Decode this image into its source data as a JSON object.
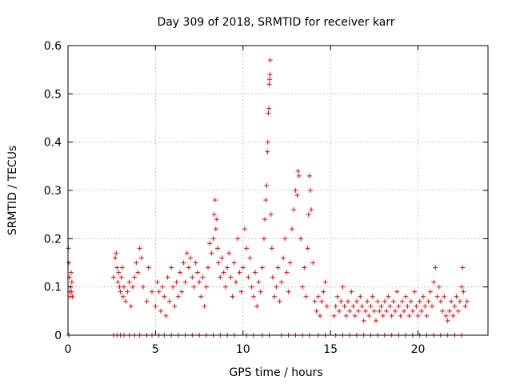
{
  "chart_data": {
    "type": "scatter",
    "title": "Day 309 of 2018, SRMTID for receiver karr",
    "xlabel": "GPS time / hours",
    "ylabel": "SRMTID / TECUs",
    "xlim": [
      0,
      24
    ],
    "ylim": [
      0,
      0.6
    ],
    "x_ticks": [
      0,
      5,
      10,
      15,
      20
    ],
    "y_ticks": [
      0,
      0.1,
      0.2,
      0.3,
      0.4,
      0.5,
      0.6
    ],
    "x_tick_labels": [
      "0",
      "5",
      "10",
      "15",
      "20"
    ],
    "y_tick_labels": [
      "0",
      "0.1",
      "0.2",
      "0.3",
      "0.4",
      "0.5",
      "0.6"
    ],
    "grid": true,
    "marker": "+",
    "color": "#ff0000",
    "series": [
      {
        "name": "SRMTID",
        "points": [
          [
            0.02,
            0.18
          ],
          [
            0.05,
            0.15
          ],
          [
            0.08,
            0.12
          ],
          [
            0.1,
            0.09
          ],
          [
            0.12,
            0.08
          ],
          [
            0.15,
            0.1
          ],
          [
            0.18,
            0.13
          ],
          [
            0.2,
            0.09
          ],
          [
            0.22,
            0.11
          ],
          [
            0.25,
            0.08
          ],
          [
            2.6,
            0.12
          ],
          [
            2.7,
            0.16
          ],
          [
            2.75,
            0.17
          ],
          [
            2.8,
            0.14
          ],
          [
            2.85,
            0.11
          ],
          [
            2.9,
            0.13
          ],
          [
            2.95,
            0.1
          ],
          [
            3.0,
            0.09
          ],
          [
            3.05,
            0.12
          ],
          [
            3.1,
            0.14
          ],
          [
            3.15,
            0.08
          ],
          [
            3.2,
            0.1
          ],
          [
            3.3,
            0.07
          ],
          [
            3.4,
            0.09
          ],
          [
            3.5,
            0.11
          ],
          [
            3.6,
            0.06
          ],
          [
            3.7,
            0.1
          ],
          [
            3.8,
            0.12
          ],
          [
            3.9,
            0.15
          ],
          [
            4.0,
            0.13
          ],
          [
            4.1,
            0.18
          ],
          [
            4.2,
            0.16
          ],
          [
            4.3,
            0.1
          ],
          [
            4.5,
            0.07
          ],
          [
            4.6,
            0.14
          ],
          [
            4.8,
            0.09
          ],
          [
            5.0,
            0.06
          ],
          [
            5.1,
            0.11
          ],
          [
            5.2,
            0.09
          ],
          [
            5.3,
            0.05
          ],
          [
            5.4,
            0.1
          ],
          [
            5.5,
            0.08
          ],
          [
            5.6,
            0.04
          ],
          [
            5.7,
            0.12
          ],
          [
            5.8,
            0.07
          ],
          [
            5.9,
            0.14
          ],
          [
            6.0,
            0.1
          ],
          [
            6.1,
            0.06
          ],
          [
            6.2,
            0.11
          ],
          [
            6.3,
            0.08
          ],
          [
            6.4,
            0.13
          ],
          [
            6.5,
            0.09
          ],
          [
            6.6,
            0.15
          ],
          [
            6.7,
            0.11
          ],
          [
            6.8,
            0.17
          ],
          [
            6.9,
            0.14
          ],
          [
            7.0,
            0.16
          ],
          [
            7.1,
            0.12
          ],
          [
            7.2,
            0.1
          ],
          [
            7.3,
            0.15
          ],
          [
            7.4,
            0.13
          ],
          [
            7.5,
            0.11
          ],
          [
            7.6,
            0.08
          ],
          [
            7.7,
            0.12
          ],
          [
            7.8,
            0.06
          ],
          [
            7.9,
            0.1
          ],
          [
            8.0,
            0.14
          ],
          [
            8.1,
            0.19
          ],
          [
            8.2,
            0.17
          ],
          [
            8.3,
            0.2
          ],
          [
            8.35,
            0.25
          ],
          [
            8.4,
            0.28
          ],
          [
            8.45,
            0.22
          ],
          [
            8.5,
            0.24
          ],
          [
            8.55,
            0.18
          ],
          [
            8.6,
            0.15
          ],
          [
            8.7,
            0.12
          ],
          [
            8.8,
            0.16
          ],
          [
            8.9,
            0.13
          ],
          [
            9.0,
            0.1
          ],
          [
            9.1,
            0.14
          ],
          [
            9.2,
            0.17
          ],
          [
            9.3,
            0.12
          ],
          [
            9.4,
            0.08
          ],
          [
            9.5,
            0.15
          ],
          [
            9.6,
            0.11
          ],
          [
            9.7,
            0.2
          ],
          [
            9.8,
            0.13
          ],
          [
            9.9,
            0.09
          ],
          [
            10.0,
            0.14
          ],
          [
            10.1,
            0.22
          ],
          [
            10.2,
            0.18
          ],
          [
            10.3,
            0.12
          ],
          [
            10.4,
            0.16
          ],
          [
            10.5,
            0.1
          ],
          [
            10.6,
            0.08
          ],
          [
            10.7,
            0.13
          ],
          [
            10.8,
            0.06
          ],
          [
            10.9,
            0.11
          ],
          [
            11.0,
            0.09
          ],
          [
            11.1,
            0.14
          ],
          [
            11.2,
            0.2
          ],
          [
            11.25,
            0.24
          ],
          [
            11.3,
            0.28
          ],
          [
            11.35,
            0.31
          ],
          [
            11.4,
            0.38
          ],
          [
            11.42,
            0.4
          ],
          [
            11.45,
            0.46
          ],
          [
            11.48,
            0.47
          ],
          [
            11.5,
            0.52
          ],
          [
            11.52,
            0.53
          ],
          [
            11.54,
            0.54
          ],
          [
            11.55,
            0.57
          ],
          [
            11.6,
            0.25
          ],
          [
            11.65,
            0.18
          ],
          [
            11.7,
            0.12
          ],
          [
            11.8,
            0.08
          ],
          [
            11.9,
            0.1
          ],
          [
            12.0,
            0.14
          ],
          [
            12.1,
            0.07
          ],
          [
            12.2,
            0.11
          ],
          [
            12.3,
            0.16
          ],
          [
            12.4,
            0.2
          ],
          [
            12.5,
            0.13
          ],
          [
            12.6,
            0.09
          ],
          [
            12.7,
            0.15
          ],
          [
            12.8,
            0.22
          ],
          [
            12.9,
            0.26
          ],
          [
            13.0,
            0.3
          ],
          [
            13.1,
            0.29
          ],
          [
            13.15,
            0.34
          ],
          [
            13.2,
            0.33
          ],
          [
            13.3,
            0.2
          ],
          [
            13.4,
            0.1
          ],
          [
            13.5,
            0.14
          ],
          [
            13.6,
            0.08
          ],
          [
            13.7,
            0.18
          ],
          [
            13.75,
            0.25
          ],
          [
            13.8,
            0.33
          ],
          [
            13.85,
            0.3
          ],
          [
            13.9,
            0.26
          ],
          [
            14.0,
            0.15
          ],
          [
            14.1,
            0.07
          ],
          [
            14.2,
            0.05
          ],
          [
            14.3,
            0.08
          ],
          [
            14.4,
            0.04
          ],
          [
            14.5,
            0.07
          ],
          [
            14.6,
            0.09
          ],
          [
            14.7,
            0.11
          ],
          [
            14.8,
            0.06
          ],
          [
            15.2,
            0.04
          ],
          [
            15.3,
            0.06
          ],
          [
            15.4,
            0.08
          ],
          [
            15.5,
            0.05
          ],
          [
            15.6,
            0.07
          ],
          [
            15.7,
            0.1
          ],
          [
            15.8,
            0.06
          ],
          [
            15.9,
            0.04
          ],
          [
            16.0,
            0.07
          ],
          [
            16.1,
            0.05
          ],
          [
            16.2,
            0.09
          ],
          [
            16.3,
            0.06
          ],
          [
            16.4,
            0.04
          ],
          [
            16.5,
            0.07
          ],
          [
            16.6,
            0.05
          ],
          [
            16.7,
            0.08
          ],
          [
            16.8,
            0.06
          ],
          [
            16.9,
            0.03
          ],
          [
            17.0,
            0.05
          ],
          [
            17.1,
            0.07
          ],
          [
            17.2,
            0.04
          ],
          [
            17.3,
            0.06
          ],
          [
            17.4,
            0.08
          ],
          [
            17.5,
            0.05
          ],
          [
            17.6,
            0.03
          ],
          [
            17.7,
            0.07
          ],
          [
            17.8,
            0.05
          ],
          [
            17.9,
            0.06
          ],
          [
            18.0,
            0.04
          ],
          [
            18.1,
            0.07
          ],
          [
            18.2,
            0.05
          ],
          [
            18.3,
            0.08
          ],
          [
            18.4,
            0.06
          ],
          [
            18.5,
            0.04
          ],
          [
            18.6,
            0.07
          ],
          [
            18.7,
            0.05
          ],
          [
            18.8,
            0.09
          ],
          [
            18.9,
            0.06
          ],
          [
            19.0,
            0.04
          ],
          [
            19.1,
            0.07
          ],
          [
            19.2,
            0.05
          ],
          [
            19.3,
            0.08
          ],
          [
            19.4,
            0.06
          ],
          [
            19.5,
            0.04
          ],
          [
            19.6,
            0.07
          ],
          [
            19.7,
            0.05
          ],
          [
            19.8,
            0.09
          ],
          [
            19.9,
            0.06
          ],
          [
            20.0,
            0.04
          ],
          [
            20.1,
            0.07
          ],
          [
            20.2,
            0.05
          ],
          [
            20.3,
            0.08
          ],
          [
            20.4,
            0.06
          ],
          [
            20.5,
            0.04
          ],
          [
            20.6,
            0.07
          ],
          [
            20.7,
            0.09
          ],
          [
            20.8,
            0.06
          ],
          [
            20.9,
            0.11
          ],
          [
            21.0,
            0.14
          ],
          [
            21.1,
            0.08
          ],
          [
            21.2,
            0.1
          ],
          [
            21.3,
            0.07
          ],
          [
            21.4,
            0.05
          ],
          [
            21.5,
            0.08
          ],
          [
            21.6,
            0.04
          ],
          [
            21.7,
            0.03
          ],
          [
            21.8,
            0.05
          ],
          [
            21.9,
            0.07
          ],
          [
            22.0,
            0.04
          ],
          [
            22.1,
            0.06
          ],
          [
            22.2,
            0.08
          ],
          [
            22.3,
            0.05
          ],
          [
            22.4,
            0.07
          ],
          [
            22.5,
            0.1
          ],
          [
            22.55,
            0.14
          ],
          [
            22.6,
            0.09
          ],
          [
            22.7,
            0.06
          ],
          [
            22.8,
            0.07
          ],
          [
            0.05,
            0.0
          ],
          [
            2.6,
            0.0
          ],
          [
            2.8,
            0.0
          ],
          [
            3.0,
            0.0
          ],
          [
            3.2,
            0.0
          ],
          [
            3.5,
            0.0
          ],
          [
            3.8,
            0.0
          ],
          [
            4.1,
            0.0
          ],
          [
            4.5,
            0.0
          ],
          [
            4.8,
            0.0
          ],
          [
            5.2,
            0.0
          ],
          [
            5.5,
            0.0
          ],
          [
            5.9,
            0.0
          ],
          [
            6.3,
            0.0
          ],
          [
            6.7,
            0.0
          ],
          [
            7.1,
            0.0
          ],
          [
            7.5,
            0.0
          ],
          [
            7.9,
            0.0
          ],
          [
            8.3,
            0.0
          ],
          [
            8.7,
            0.0
          ],
          [
            9.1,
            0.0
          ],
          [
            9.5,
            0.0
          ],
          [
            10.2,
            0.0
          ],
          [
            10.6,
            0.0
          ],
          [
            11.1,
            0.0
          ],
          [
            11.5,
            0.0
          ],
          [
            12.2,
            0.0
          ],
          [
            12.6,
            0.0
          ],
          [
            13.0,
            0.0
          ],
          [
            13.4,
            0.0
          ],
          [
            13.8,
            0.0
          ],
          [
            14.3,
            0.0
          ],
          [
            14.7,
            0.0
          ],
          [
            15.3,
            0.0
          ],
          [
            15.7,
            0.0
          ],
          [
            16.1,
            0.0
          ],
          [
            16.5,
            0.0
          ],
          [
            16.9,
            0.0
          ],
          [
            17.3,
            0.0
          ],
          [
            17.7,
            0.0
          ],
          [
            18.1,
            0.0
          ],
          [
            18.5,
            0.0
          ],
          [
            18.9,
            0.0
          ],
          [
            19.3,
            0.0
          ],
          [
            19.7,
            0.0
          ],
          [
            20.1,
            0.0
          ],
          [
            20.5,
            0.0
          ],
          [
            20.9,
            0.0
          ],
          [
            21.3,
            0.0
          ],
          [
            21.7,
            0.0
          ],
          [
            22.1,
            0.0
          ],
          [
            22.5,
            0.0
          ]
        ]
      }
    ]
  }
}
